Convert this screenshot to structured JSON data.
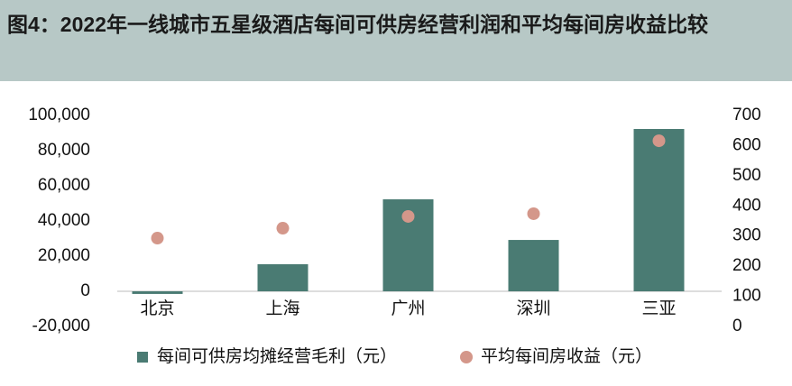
{
  "chart_data": {
    "type": "bar",
    "title": "图4：2022年一线城市五星级酒店每间可供房经营利润和平均每间房收益比较",
    "categories": [
      "北京",
      "上海",
      "广州",
      "深圳",
      "三亚"
    ],
    "series": [
      {
        "name": "每间可供房均摊经营毛利（元）",
        "type": "bar",
        "color": "#4a7b73",
        "values": [
          -1500,
          15400,
          52300,
          29200,
          92300
        ]
      },
      {
        "name": "平均每间房收益（元）",
        "type": "scatter",
        "axis": "y2",
        "color": "#d4978a",
        "values": [
          293,
          326,
          365,
          374,
          616
        ]
      }
    ],
    "ylim": [
      -20000,
      100000
    ],
    "yticks": [
      {
        "value": -20000,
        "label": "-20,000"
      },
      0,
      {
        "value": 20000,
        "label": "20,000"
      },
      {
        "value": 40000,
        "label": "40,000"
      },
      {
        "value": 60000,
        "label": "60,000"
      },
      {
        "value": 80000,
        "label": "80,000"
      },
      {
        "value": 100000,
        "label": "100,000"
      }
    ],
    "y2lim": [
      0,
      700
    ],
    "y2ticks": [
      0,
      100,
      200,
      300,
      400,
      500,
      600,
      700
    ]
  }
}
